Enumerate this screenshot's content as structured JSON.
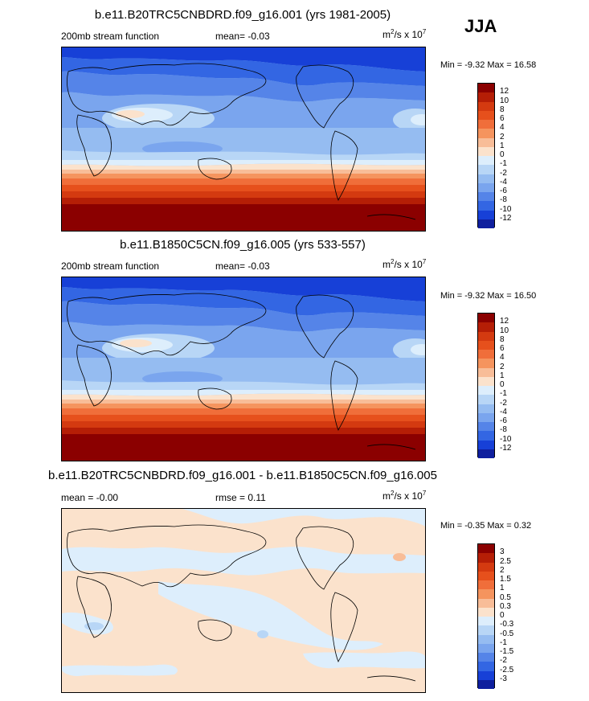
{
  "season": "JJA",
  "units_base": "m",
  "units_sup": "2",
  "units_rest": "/s x 10",
  "units_exp": "7",
  "panels": [
    {
      "title": "b.e11.B20TRC5CNBDRD.f09_g16.001 (yrs 1981-2005)",
      "left_label": "200mb stream function",
      "center_label": "mean=  -0.03",
      "minmax": "Min =  -9.32 Max =  16.58"
    },
    {
      "title": "b.e11.B1850C5CN.f09_g16.005 (yrs 533-557)",
      "left_label": "200mb stream function",
      "center_label": "mean=  -0.03",
      "minmax": "Min =  -9.32 Max =  16.50"
    },
    {
      "title": "b.e11.B20TRC5CNBDRD.f09_g16.001 - b.e11.B1850C5CN.f09_g16.005",
      "left_label": "mean =  -0.00",
      "center_label": "rmse =   0.11",
      "minmax": "Min =  -0.35 Max =   0.32"
    }
  ],
  "chart_data": [
    {
      "type": "heatmap",
      "title": "b.e11.B20TRC5CNBDRD.f09_g16.001 (yrs 1981-2005)",
      "variable": "200mb stream function",
      "mean": -0.03,
      "min": -9.32,
      "max": 16.58,
      "colorbar_levels": [
        "12",
        "10",
        "8",
        "6",
        "4",
        "2",
        "1",
        "0",
        "-1",
        "-2",
        "-4",
        "-6",
        "-8",
        "-10",
        "-12"
      ],
      "colors": [
        "#8b0000",
        "#b51e06",
        "#d43a10",
        "#e6501c",
        "#f06e3a",
        "#f5945e",
        "#f8bd98",
        "#fbe2cc",
        "#ddeefc",
        "#b8d6f6",
        "#95bcf1",
        "#7aa5ee",
        "#5584e8",
        "#3366e3",
        "#1740d7",
        "#0f1f9e"
      ]
    },
    {
      "type": "heatmap",
      "title": "b.e11.B1850C5CN.f09_g16.005 (yrs 533-557)",
      "variable": "200mb stream function",
      "mean": -0.03,
      "min": -9.32,
      "max": 16.5,
      "colorbar_levels": [
        "12",
        "10",
        "8",
        "6",
        "4",
        "2",
        "1",
        "0",
        "-1",
        "-2",
        "-4",
        "-6",
        "-8",
        "-10",
        "-12"
      ],
      "colors": [
        "#8b0000",
        "#b51e06",
        "#d43a10",
        "#e6501c",
        "#f06e3a",
        "#f5945e",
        "#f8bd98",
        "#fbe2cc",
        "#ddeefc",
        "#b8d6f6",
        "#95bcf1",
        "#7aa5ee",
        "#5584e8",
        "#3366e3",
        "#1740d7",
        "#0f1f9e"
      ]
    },
    {
      "type": "heatmap",
      "title": "b.e11.B20TRC5CNBDRD.f09_g16.001 - b.e11.B1850C5CN.f09_g16.005",
      "mean": -0.0,
      "rmse": 0.11,
      "min": -0.35,
      "max": 0.32,
      "colorbar_levels": [
        "3",
        "2.5",
        "2",
        "1.5",
        "1",
        "0.5",
        "0.3",
        "0",
        "-0.3",
        "-0.5",
        "-1",
        "-1.5",
        "-2",
        "-2.5",
        "-3"
      ],
      "colors": [
        "#8b0000",
        "#b51e06",
        "#d43a10",
        "#e6501c",
        "#f06e3a",
        "#f5945e",
        "#f8bd98",
        "#fbe2cc",
        "#ddeefc",
        "#b8d6f6",
        "#95bcf1",
        "#7aa5ee",
        "#5584e8",
        "#3366e3",
        "#1740d7",
        "#0f1f9e"
      ]
    }
  ]
}
